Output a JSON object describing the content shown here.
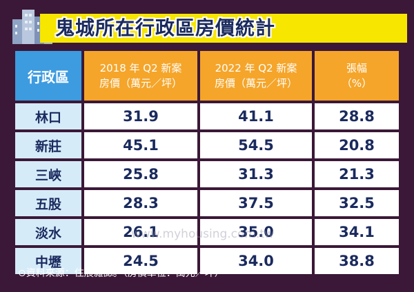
{
  "header": {
    "title": "鬼城所在行政區房價統計"
  },
  "table": {
    "columns": [
      [
        "行政區"
      ],
      [
        "2018 年 Q2 新案",
        "房價（萬元／坪）"
      ],
      [
        "2022 年 Q2 新案",
        "房價（萬元／坪）"
      ],
      [
        "張幅",
        "（%）"
      ]
    ],
    "rows": [
      [
        "林口",
        "31.9",
        "41.1",
        "28.8"
      ],
      [
        "新莊",
        "45.1",
        "54.5",
        "20.8"
      ],
      [
        "三峽",
        "25.8",
        "31.3",
        "21.3"
      ],
      [
        "五股",
        "28.3",
        "37.5",
        "32.5"
      ],
      [
        "淡水",
        "26.1",
        "35.0",
        "34.1"
      ],
      [
        "中壢",
        "24.5",
        "34.0",
        "38.8"
      ]
    ]
  },
  "watermark": "www.myhousing.com.tw",
  "footer": {
    "source": "⊙資料來源：住展雜誌。（房價單位：萬元／坪）"
  }
}
